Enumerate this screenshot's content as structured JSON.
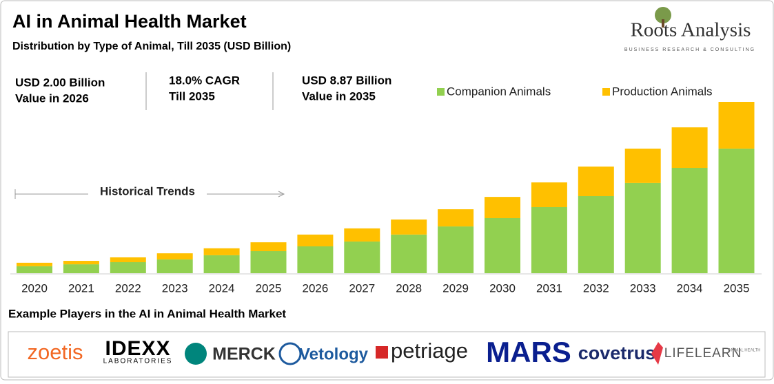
{
  "header": {
    "title": "AI in Animal Health Market",
    "subtitle": "Distribution by Type of Animal, Till 2035 (USD Billion)"
  },
  "logo": {
    "name": "Roots Analysis",
    "tagline": "BUSINESS RESEARCH & CONSULTING"
  },
  "stats": [
    [
      "USD 2.00 Billion",
      "Value in 2026"
    ],
    [
      "18.0% CAGR",
      "Till 2035"
    ],
    [
      "USD 8.87 Billion",
      "Value in 2035"
    ]
  ],
  "chart_data": {
    "type": "bar",
    "stacked": true,
    "annotation": "Historical Trends",
    "categories": [
      "2020",
      "2021",
      "2022",
      "2023",
      "2024",
      "2025",
      "2026",
      "2027",
      "2028",
      "2029",
      "2030",
      "2031",
      "2032",
      "2033",
      "2034",
      "2035"
    ],
    "series": [
      {
        "name": "Companion Animals",
        "color": "#92d050",
        "values": [
          0.36,
          0.46,
          0.57,
          0.71,
          0.93,
          1.14,
          1.39,
          1.64,
          2.0,
          2.42,
          2.85,
          3.42,
          3.99,
          4.67,
          5.45,
          6.45
        ]
      },
      {
        "name": "Production Animals",
        "color": "#ffc000",
        "values": [
          0.18,
          0.18,
          0.25,
          0.32,
          0.36,
          0.46,
          0.61,
          0.68,
          0.78,
          0.89,
          1.1,
          1.28,
          1.53,
          1.78,
          2.1,
          2.42
        ]
      }
    ]
  },
  "players": {
    "title": "Example Players in the AI in Animal Health Market",
    "logos": [
      "zoetis",
      "IDEXX",
      "LABORATORIES",
      "MERCK",
      "Vetology",
      "petriage",
      "MARS",
      "covetrus",
      "LIFELEARN",
      "ANIMAL HEALTH"
    ]
  }
}
